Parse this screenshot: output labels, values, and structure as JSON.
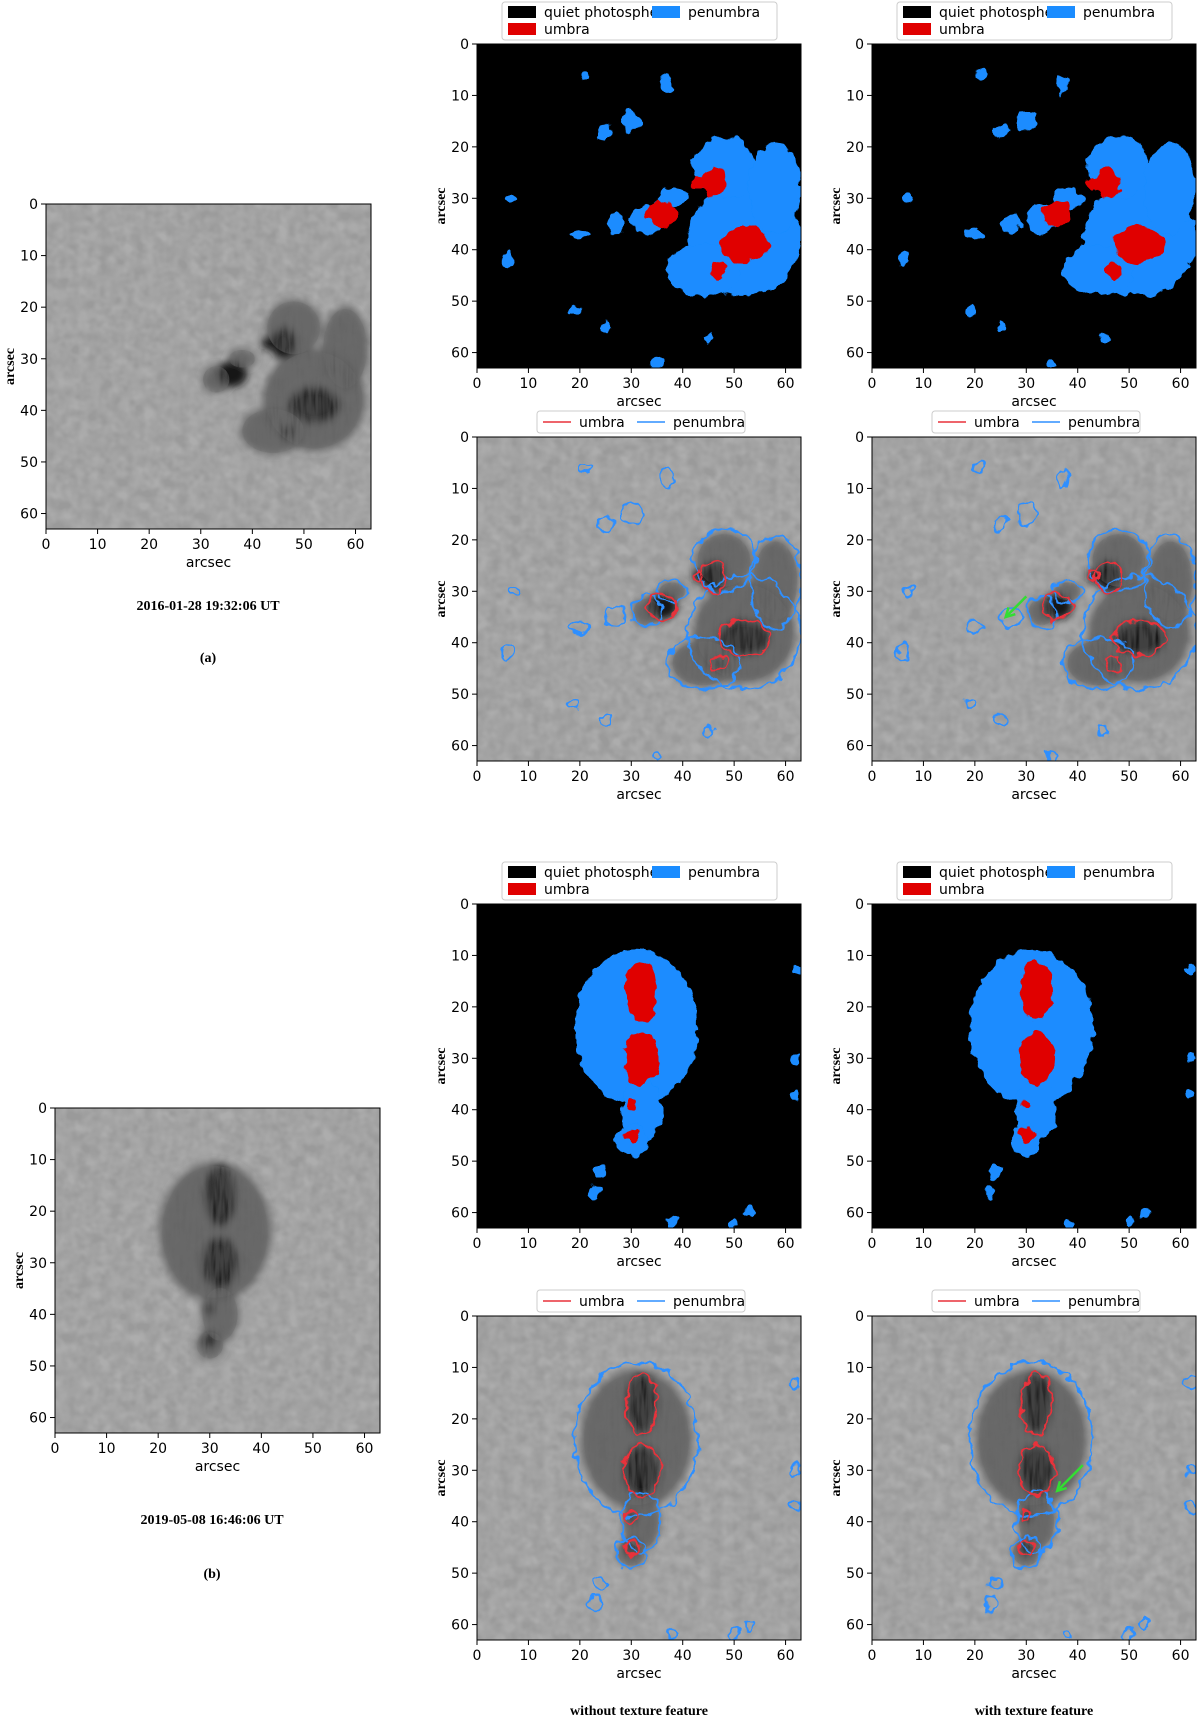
{
  "rows": [
    {
      "date": "2016-01-28 19:32:06 UT",
      "label": "(a)"
    },
    {
      "date": "2019-05-08 16:46:06 UT",
      "label": "(b)"
    }
  ],
  "axes": {
    "xlabel": "arcsec",
    "ylabel": "arcsec",
    "ticks": [
      0,
      10,
      20,
      30,
      40,
      50,
      60
    ],
    "lim": [
      0,
      63
    ]
  },
  "segmentation_legend": [
    {
      "name": "quiet photosphere",
      "color": "#000000"
    },
    {
      "name": "umbra",
      "color": "#e00000"
    },
    {
      "name": "penumbra",
      "color": "#1a8cff"
    }
  ],
  "contour_legend": [
    {
      "name": "umbra",
      "color": "#e8303a"
    },
    {
      "name": "penumbra",
      "color": "#2f8fff"
    }
  ],
  "column_labels": [
    "without texture feature",
    "with texture feature"
  ]
}
